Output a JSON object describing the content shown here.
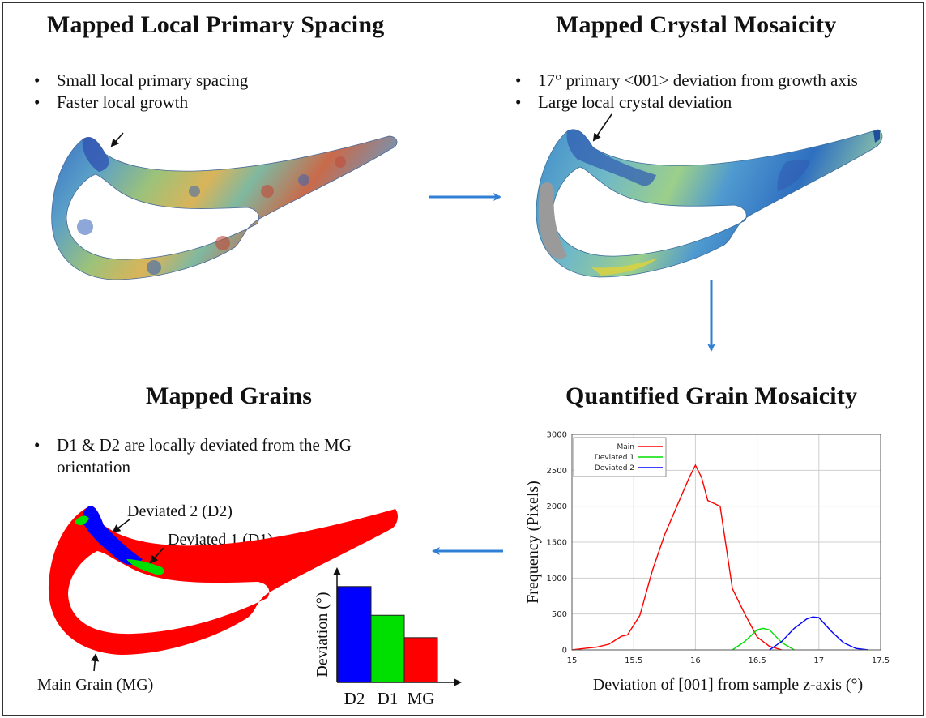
{
  "panels": {
    "spacing": {
      "title": "Mapped Local Primary Spacing",
      "bullets": [
        "Small local primary spacing",
        "Faster local growth"
      ]
    },
    "mosaicity": {
      "title": "Mapped Crystal Mosaicity",
      "bullets": [
        "17° primary <001> deviation from growth axis",
        "Large local crystal deviation"
      ]
    },
    "grains": {
      "title": "Mapped Grains",
      "bullets": [
        "D1 & D2 are locally deviated from the MG orientation"
      ],
      "label_d2": "Deviated 2 (D2)",
      "label_d1": "Deviated 1 (D1)",
      "label_mg": "Main Grain (MG)",
      "bar_ylabel": "Deviation (°)",
      "bar_categories": [
        "D2",
        "D1",
        "MG"
      ]
    },
    "quantified": {
      "title": "Quantified Grain Mosaicity"
    }
  },
  "colors": {
    "arrow": "#2f7fd6",
    "main": "#ff0000",
    "deviated1": "#00e000",
    "deviated2": "#0000ff"
  },
  "chart_data": [
    {
      "type": "line",
      "xlabel": "Deviation of [001] from sample z-axis (°)",
      "ylabel": "Frequency (Pixels)",
      "xlim": [
        15,
        17.5
      ],
      "ylim": [
        0,
        3000
      ],
      "xticks": [
        "15",
        "15.5",
        "16",
        "16.5",
        "17",
        "17.5"
      ],
      "yticks": [
        "0",
        "500",
        "1000",
        "1500",
        "2000",
        "2500",
        "3000"
      ],
      "grid": true,
      "legend": "top-left",
      "series": [
        {
          "name": "Main",
          "color": "#ff0000",
          "x": [
            15.0,
            15.1,
            15.2,
            15.3,
            15.4,
            15.45,
            15.55,
            15.65,
            15.75,
            15.85,
            15.95,
            16.0,
            16.05,
            16.1,
            16.2,
            16.3,
            16.4,
            16.5,
            16.6,
            16.7
          ],
          "y": [
            0,
            20,
            40,
            80,
            190,
            210,
            480,
            1100,
            1600,
            2000,
            2400,
            2570,
            2400,
            2080,
            2000,
            850,
            500,
            180,
            50,
            0
          ]
        },
        {
          "name": "Deviated 1",
          "color": "#00e000",
          "x": [
            16.3,
            16.4,
            16.5,
            16.55,
            16.6,
            16.7,
            16.8
          ],
          "y": [
            0,
            120,
            280,
            300,
            280,
            100,
            0
          ]
        },
        {
          "name": "Deviated 2",
          "color": "#0000ff",
          "x": [
            16.6,
            16.7,
            16.8,
            16.9,
            16.95,
            17.0,
            17.1,
            17.2,
            17.3,
            17.4
          ],
          "y": [
            0,
            120,
            300,
            430,
            460,
            450,
            260,
            100,
            20,
            0
          ]
        }
      ]
    },
    {
      "type": "bar",
      "categories": [
        "D2",
        "D1",
        "MG"
      ],
      "values": [
        3,
        2.1,
        1.4
      ],
      "colors": [
        "#0000ff",
        "#00e000",
        "#ff0000"
      ],
      "ylabel": "Deviation (°)"
    }
  ]
}
